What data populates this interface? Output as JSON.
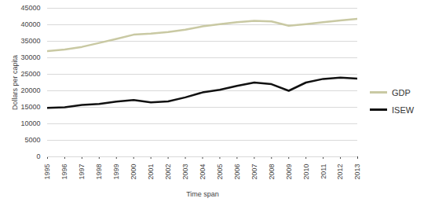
{
  "chart_data": {
    "type": "line",
    "x_label": "Time span",
    "y_label": "Dollars per capita",
    "x": [
      1995,
      1996,
      1997,
      1998,
      1999,
      2000,
      2001,
      2002,
      2003,
      2004,
      2005,
      2006,
      2007,
      2008,
      2009,
      2010,
      2011,
      2012,
      2013
    ],
    "series": [
      {
        "name": "GDP",
        "color": "#c9c9a3",
        "values": [
          32000,
          32500,
          33300,
          34500,
          35700,
          37000,
          37300,
          37800,
          38500,
          39500,
          40200,
          40800,
          41200,
          41000,
          39700,
          40200,
          40800,
          41300,
          41800
        ]
      },
      {
        "name": "ISEW",
        "color": "#111111",
        "values": [
          14800,
          15000,
          15700,
          16000,
          16700,
          17200,
          16500,
          16800,
          18000,
          19500,
          20300,
          21500,
          22500,
          22000,
          20000,
          22500,
          23600,
          24000,
          23700
        ]
      }
    ],
    "xlim": [
      1995,
      2013
    ],
    "xticks": [
      1995,
      1996,
      1997,
      1998,
      1999,
      2000,
      2001,
      2002,
      2003,
      2004,
      2005,
      2006,
      2007,
      2008,
      2009,
      2010,
      2011,
      2012,
      2013
    ],
    "ylim": [
      0,
      45000
    ],
    "yticks": [
      0,
      5000,
      10000,
      15000,
      20000,
      25000,
      30000,
      35000,
      40000,
      45000
    ],
    "grid": true,
    "legend": "right"
  }
}
